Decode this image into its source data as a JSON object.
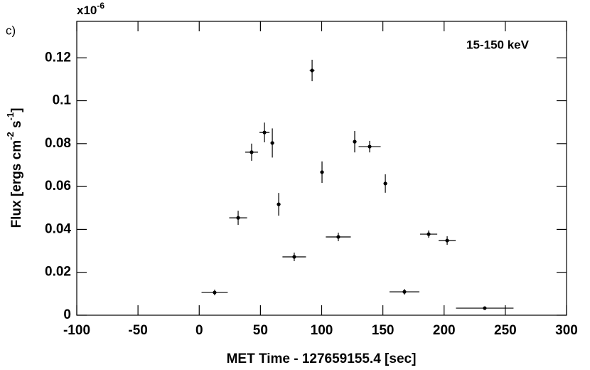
{
  "chart_data": {
    "type": "scatter",
    "panel_label": "c)",
    "annotation": "15-150 keV",
    "xlabel": "MET Time - 127659155.4 [sec]",
    "ylabel_parts": [
      {
        "text": "Flux [ergs cm"
      },
      {
        "text": "-2",
        "sup": true
      },
      {
        "text": " s"
      },
      {
        "text": "-1",
        "sup": true
      },
      {
        "text": "]"
      }
    ],
    "y_multiplier": {
      "base": "x10",
      "exponent": "-6"
    },
    "xlim": [
      -100,
      300
    ],
    "xticks": [
      -100,
      -50,
      0,
      50,
      100,
      150,
      200,
      250,
      300
    ],
    "ylim": [
      0,
      0.137
    ],
    "yticks": [
      0,
      0.02,
      0.04,
      0.06,
      0.08,
      0.1,
      0.12
    ],
    "grid": false,
    "series": [
      {
        "color": "#000000",
        "x": [
          12.6,
          31.8,
          42.8,
          53.3,
          59.7,
          64.9,
          77.6,
          92.2,
          100.3,
          113.6,
          127.0,
          139.2,
          152.0,
          167.6,
          187.4,
          202.5,
          233.2
        ],
        "xerr": [
          10.7,
          7.3,
          5.2,
          4.1,
          1.5,
          1.5,
          9.6,
          2.0,
          1.5,
          10.2,
          1.5,
          9.0,
          1.5,
          12.2,
          7.0,
          7.0,
          23.5
        ],
        "values": [
          0.0106,
          0.0454,
          0.076,
          0.0852,
          0.0803,
          0.0517,
          0.0272,
          0.1141,
          0.0667,
          0.0365,
          0.0809,
          0.0786,
          0.0614,
          0.0109,
          0.0378,
          0.0348,
          0.0033
        ],
        "yerr": [
          0.0013,
          0.0033,
          0.004,
          0.0046,
          0.0068,
          0.0053,
          0.002,
          0.005,
          0.005,
          0.002,
          0.005,
          0.0027,
          0.0043,
          0.0013,
          0.0017,
          0.002,
          0.0007
        ]
      }
    ]
  }
}
